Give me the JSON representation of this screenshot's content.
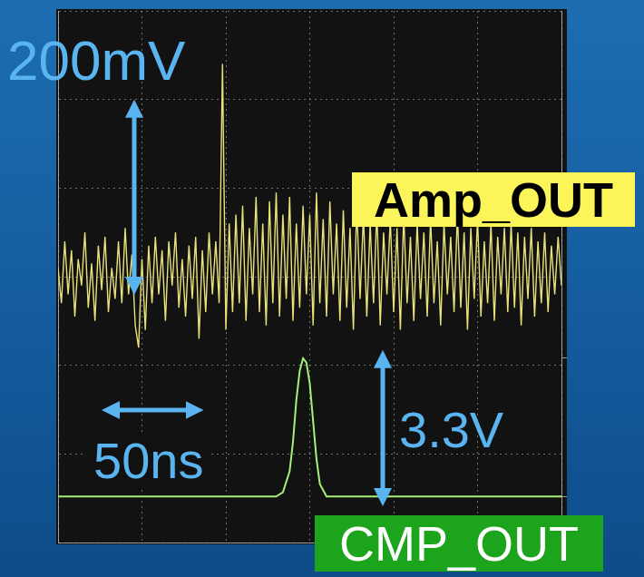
{
  "chart_data": {
    "type": "line",
    "xlim": [
      0,
      300
    ],
    "xticks": [
      0,
      50,
      100,
      150,
      200,
      250,
      300
    ],
    "ylim": [
      -300,
      300
    ],
    "yticks": [
      -300,
      -200,
      -100,
      0,
      100,
      200,
      300
    ],
    "y2lim": [
      -1.1,
      11.6
    ],
    "y2ticks": [
      0,
      3.3
    ],
    "grid": true,
    "tick_labels": false,
    "scale_bars": [
      {
        "text": "200mV",
        "value": 200,
        "axis": "y"
      },
      {
        "text": "50ns",
        "value": 50,
        "axis": "x"
      },
      {
        "text": "3.3V",
        "value": 3.3,
        "axis": "y2"
      }
    ],
    "series": [
      {
        "name": "Amp_OUT",
        "color": "#e9e27a",
        "x": [
          0,
          2,
          4,
          6,
          8,
          10,
          12,
          14,
          16,
          18,
          20,
          22,
          24,
          26,
          28,
          30,
          32,
          34,
          36,
          38,
          40,
          42,
          44,
          46,
          48,
          50,
          52,
          54,
          56,
          58,
          60,
          62,
          64,
          66,
          68,
          70,
          72,
          74,
          76,
          78,
          80,
          82,
          84,
          86,
          88,
          90,
          92,
          94,
          96,
          98,
          100,
          102,
          104,
          106,
          108,
          110,
          112,
          114,
          116,
          118,
          120,
          122,
          124,
          126,
          128,
          130,
          132,
          134,
          136,
          138,
          140,
          142,
          144,
          146,
          148,
          150,
          152,
          154,
          156,
          158,
          160,
          162,
          164,
          166,
          168,
          170,
          172,
          174,
          176,
          178,
          180,
          182,
          184,
          186,
          188,
          190,
          192,
          194,
          196,
          198,
          200,
          202,
          204,
          206,
          208,
          210,
          212,
          214,
          216,
          218,
          220,
          222,
          224,
          226,
          228,
          230,
          232,
          234,
          236,
          238,
          240,
          242,
          244,
          246,
          248,
          250,
          252,
          254,
          256,
          258,
          260,
          262,
          264,
          266,
          268,
          270,
          272,
          274,
          276,
          278,
          280,
          282,
          284,
          286,
          288,
          290,
          292,
          294,
          296,
          298,
          300
        ],
        "values": [
          10,
          -30,
          40,
          -20,
          30,
          -45,
          20,
          -10,
          50,
          -35,
          15,
          -50,
          35,
          -15,
          45,
          -40,
          10,
          -25,
          40,
          -30,
          55,
          -20,
          25,
          -55,
          -80,
          20,
          -60,
          35,
          -30,
          45,
          -20,
          30,
          -50,
          40,
          -10,
          50,
          -35,
          20,
          -45,
          35,
          -25,
          45,
          -70,
          30,
          -40,
          50,
          -20,
          40,
          -30,
          240,
          -60,
          60,
          -40,
          70,
          -30,
          80,
          -50,
          55,
          -20,
          90,
          -40,
          60,
          -55,
          85,
          -30,
          95,
          -45,
          70,
          -25,
          90,
          -50,
          60,
          -35,
          80,
          -20,
          70,
          -55,
          95,
          -30,
          65,
          -45,
          85,
          -20,
          60,
          -50,
          75,
          -35,
          55,
          -60,
          80,
          -25,
          70,
          -45,
          60,
          -30,
          75,
          -55,
          50,
          -20,
          65,
          -40,
          55,
          -60,
          70,
          -30,
          45,
          -50,
          60,
          -25,
          50,
          -45,
          65,
          -30,
          40,
          -55,
          60,
          -20,
          45,
          -40,
          70,
          -35,
          50,
          -60,
          55,
          -25,
          65,
          -45,
          40,
          -30,
          60,
          -50,
          45,
          -20,
          55,
          -40,
          60,
          -35,
          50,
          -55,
          45,
          -25,
          55,
          -45,
          40,
          -30,
          50,
          -40,
          35,
          -20,
          45,
          -10
        ]
      },
      {
        "name": "CMP_OUT",
        "color": "#a6ef7a",
        "axis": "y2",
        "x": [
          0,
          50,
          100,
          130,
          134,
          138,
          140,
          142,
          144,
          146,
          148,
          150,
          152,
          154,
          156,
          160,
          200,
          250,
          300
        ],
        "values": [
          0,
          0,
          0,
          0,
          0.1,
          0.6,
          1.3,
          2.3,
          3.0,
          3.3,
          3.2,
          2.7,
          1.8,
          0.9,
          0.3,
          0,
          0,
          0,
          0
        ]
      }
    ]
  }
}
